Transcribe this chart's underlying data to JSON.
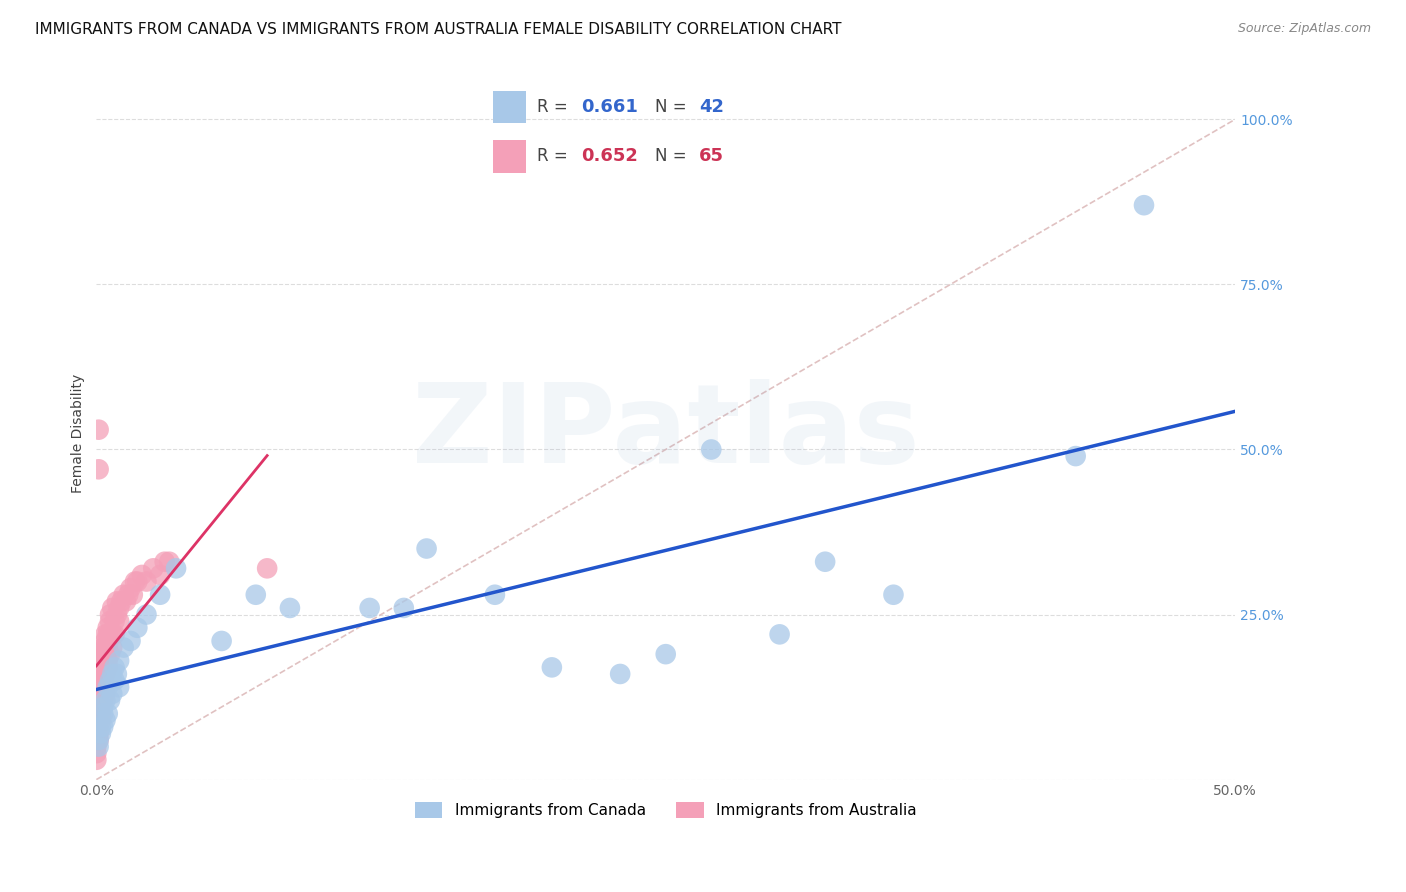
{
  "title": "IMMIGRANTS FROM CANADA VS IMMIGRANTS FROM AUSTRALIA FEMALE DISABILITY CORRELATION CHART",
  "source": "Source: ZipAtlas.com",
  "ylabel_label": "Female Disability",
  "xlim": [
    0.0,
    0.5
  ],
  "ylim": [
    0.0,
    1.05
  ],
  "canada_R": 0.661,
  "canada_N": 42,
  "australia_R": 0.652,
  "australia_N": 65,
  "canada_color": "#a8c8e8",
  "australia_color": "#f4a0b8",
  "canada_line_color": "#2255cc",
  "australia_line_color": "#dd3366",
  "diagonal_color": "#ddbbbb",
  "background_color": "#ffffff",
  "grid_color": "#dddddd",
  "right_tick_color": "#5599dd",
  "title_fontsize": 11,
  "axis_label_fontsize": 10,
  "tick_fontsize": 10,
  "watermark_fontsize": 80,
  "watermark_alpha": 0.1,
  "canada_x": [
    0.001,
    0.001,
    0.002,
    0.002,
    0.003,
    0.003,
    0.003,
    0.004,
    0.004,
    0.005,
    0.005,
    0.006,
    0.006,
    0.007,
    0.007,
    0.008,
    0.008,
    0.009,
    0.01,
    0.01,
    0.012,
    0.015,
    0.018,
    0.022,
    0.028,
    0.035,
    0.055,
    0.07,
    0.085,
    0.12,
    0.135,
    0.145,
    0.175,
    0.2,
    0.23,
    0.25,
    0.27,
    0.3,
    0.32,
    0.35,
    0.43,
    0.46
  ],
  "canada_y": [
    0.05,
    0.06,
    0.07,
    0.08,
    0.08,
    0.1,
    0.11,
    0.09,
    0.12,
    0.1,
    0.14,
    0.12,
    0.15,
    0.13,
    0.16,
    0.15,
    0.17,
    0.16,
    0.14,
    0.18,
    0.2,
    0.21,
    0.23,
    0.25,
    0.28,
    0.32,
    0.21,
    0.28,
    0.26,
    0.26,
    0.26,
    0.35,
    0.28,
    0.17,
    0.16,
    0.19,
    0.5,
    0.22,
    0.33,
    0.28,
    0.49,
    0.87
  ],
  "australia_x": [
    0.0,
    0.0,
    0.001,
    0.001,
    0.001,
    0.001,
    0.001,
    0.001,
    0.002,
    0.002,
    0.002,
    0.002,
    0.002,
    0.002,
    0.003,
    0.003,
    0.003,
    0.003,
    0.003,
    0.003,
    0.003,
    0.003,
    0.004,
    0.004,
    0.004,
    0.004,
    0.004,
    0.004,
    0.004,
    0.005,
    0.005,
    0.005,
    0.005,
    0.005,
    0.006,
    0.006,
    0.006,
    0.006,
    0.007,
    0.007,
    0.007,
    0.008,
    0.008,
    0.009,
    0.009,
    0.01,
    0.01,
    0.011,
    0.012,
    0.013,
    0.014,
    0.015,
    0.016,
    0.017,
    0.018,
    0.02,
    0.022,
    0.025,
    0.028,
    0.03,
    0.032,
    0.001,
    0.001,
    0.075,
    0.0
  ],
  "australia_y": [
    0.04,
    0.05,
    0.06,
    0.07,
    0.08,
    0.09,
    0.1,
    0.11,
    0.09,
    0.12,
    0.1,
    0.13,
    0.14,
    0.15,
    0.12,
    0.16,
    0.14,
    0.17,
    0.18,
    0.15,
    0.19,
    0.2,
    0.13,
    0.18,
    0.16,
    0.19,
    0.2,
    0.22,
    0.21,
    0.17,
    0.18,
    0.2,
    0.22,
    0.23,
    0.19,
    0.22,
    0.24,
    0.25,
    0.2,
    0.22,
    0.26,
    0.22,
    0.24,
    0.25,
    0.27,
    0.24,
    0.26,
    0.27,
    0.28,
    0.27,
    0.28,
    0.29,
    0.28,
    0.3,
    0.3,
    0.31,
    0.3,
    0.32,
    0.31,
    0.33,
    0.33,
    0.53,
    0.47,
    0.32,
    0.03
  ]
}
